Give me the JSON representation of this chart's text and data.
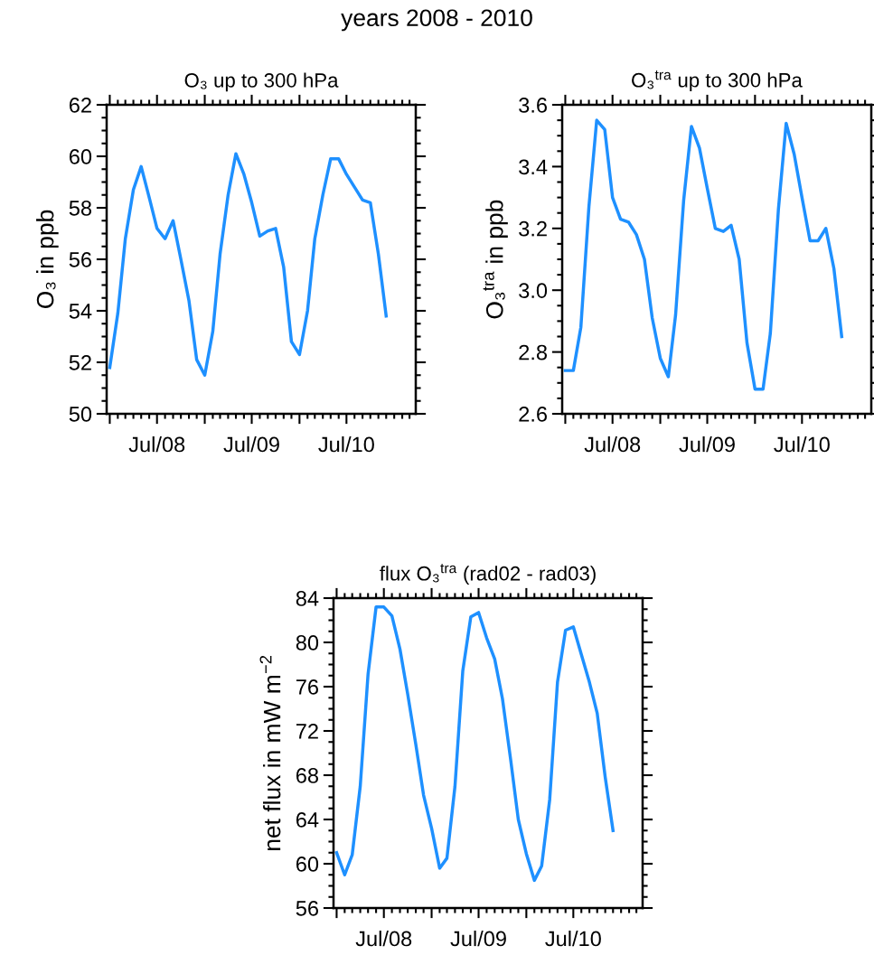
{
  "chart_data": [
    {
      "type": "line",
      "title": "years 2008 - 2010",
      "subtitle": "O₃ up to 300 hPa",
      "ylabel": "O₃ in ppb",
      "color": "#1e90ff",
      "grid": false,
      "x": [
        "2008-01",
        "2008-02",
        "2008-03",
        "2008-04",
        "2008-05",
        "2008-06",
        "2008-07",
        "2008-08",
        "2008-09",
        "2008-10",
        "2008-11",
        "2008-12",
        "2009-01",
        "2009-02",
        "2009-03",
        "2009-04",
        "2009-05",
        "2009-06",
        "2009-07",
        "2009-08",
        "2009-09",
        "2009-10",
        "2009-11",
        "2009-12",
        "2010-01",
        "2010-02",
        "2010-03",
        "2010-04",
        "2010-05",
        "2010-06",
        "2010-07",
        "2010-08",
        "2010-09",
        "2010-10",
        "2010-11",
        "2010-12"
      ],
      "values": [
        51.8,
        53.9,
        56.8,
        58.7,
        59.6,
        58.4,
        57.2,
        56.8,
        57.5,
        56.0,
        54.4,
        52.1,
        51.5,
        53.2,
        56.2,
        58.5,
        60.1,
        59.3,
        58.2,
        56.9,
        57.1,
        57.2,
        55.7,
        52.8,
        52.3,
        54.0,
        56.8,
        58.5,
        59.9,
        59.9,
        59.3,
        58.8,
        58.3,
        58.2,
        56.2,
        53.8
      ],
      "xlim": [
        "2007-12-20",
        "2011-03-25"
      ],
      "xticks": [
        {
          "value": "2008-01",
          "label": null
        },
        {
          "value": "2008-07",
          "label": "Jul/08"
        },
        {
          "value": "2009-01",
          "label": null
        },
        {
          "value": "2009-07",
          "label": "Jul/09"
        },
        {
          "value": "2010-01",
          "label": null
        },
        {
          "value": "2010-07",
          "label": "Jul/10"
        }
      ],
      "ylim": [
        50,
        62
      ],
      "yticks": [
        50,
        52,
        54,
        56,
        58,
        60,
        62
      ]
    },
    {
      "type": "line",
      "title": "O₃$^{tra}$ up to 300 hPa",
      "ylabel": "O₃$^{tra}$ in ppb",
      "color": "#1e90ff",
      "grid": false,
      "x": [
        "2008-01",
        "2008-02",
        "2008-03",
        "2008-04",
        "2008-05",
        "2008-06",
        "2008-07",
        "2008-08",
        "2008-09",
        "2008-10",
        "2008-11",
        "2008-12",
        "2009-01",
        "2009-02",
        "2009-03",
        "2009-04",
        "2009-05",
        "2009-06",
        "2009-07",
        "2009-08",
        "2009-09",
        "2009-10",
        "2009-11",
        "2009-12",
        "2010-01",
        "2010-02",
        "2010-03",
        "2010-04",
        "2010-05",
        "2010-06",
        "2010-07",
        "2010-08",
        "2010-09",
        "2010-10",
        "2010-11",
        "2010-12"
      ],
      "values": [
        2.74,
        2.74,
        2.88,
        3.27,
        3.55,
        3.52,
        3.3,
        3.23,
        3.22,
        3.18,
        3.1,
        2.91,
        2.78,
        2.72,
        2.92,
        3.29,
        3.53,
        3.46,
        3.33,
        3.2,
        3.19,
        3.21,
        3.1,
        2.83,
        2.68,
        2.68,
        2.86,
        3.26,
        3.54,
        3.44,
        3.3,
        3.16,
        3.16,
        3.2,
        3.07,
        2.85
      ],
      "xlim": [
        "2007-12-20",
        "2011-03-25"
      ],
      "xticks": [
        {
          "value": "2008-01",
          "label": null
        },
        {
          "value": "2008-07",
          "label": "Jul/08"
        },
        {
          "value": "2009-01",
          "label": null
        },
        {
          "value": "2009-07",
          "label": "Jul/09"
        },
        {
          "value": "2010-01",
          "label": null
        },
        {
          "value": "2010-07",
          "label": "Jul/10"
        }
      ],
      "ylim": [
        2.6,
        3.6
      ],
      "yticks": [
        {
          "value": 2.6,
          "label": "2.6"
        },
        {
          "value": 2.8,
          "label": "2.8"
        },
        {
          "value": 3.0,
          "label": "3.0"
        },
        {
          "value": 3.2,
          "label": "3.2"
        },
        {
          "value": 3.4,
          "label": "3.4"
        },
        {
          "value": 3.6,
          "label": "3.6"
        }
      ]
    },
    {
      "type": "line",
      "title": "flux O₃$^{tra}$ (rad02 - rad03)",
      "ylabel": "net flux in mW m$^{−2}$",
      "color": "#1e90ff",
      "grid": false,
      "x": [
        "2008-01",
        "2008-02",
        "2008-03",
        "2008-04",
        "2008-05",
        "2008-06",
        "2008-07",
        "2008-08",
        "2008-09",
        "2008-10",
        "2008-11",
        "2008-12",
        "2009-01",
        "2009-02",
        "2009-03",
        "2009-04",
        "2009-05",
        "2009-06",
        "2009-07",
        "2009-08",
        "2009-09",
        "2009-10",
        "2009-11",
        "2009-12",
        "2010-01",
        "2010-02",
        "2010-03",
        "2010-04",
        "2010-05",
        "2010-06",
        "2010-07",
        "2010-08",
        "2010-09",
        "2010-10",
        "2010-11",
        "2010-12"
      ],
      "values": [
        61.0,
        59.0,
        60.8,
        67.0,
        77.1,
        83.2,
        83.2,
        82.4,
        79.4,
        75.3,
        70.8,
        66.2,
        63.2,
        59.6,
        60.5,
        67.0,
        77.4,
        82.3,
        82.7,
        80.4,
        78.5,
        74.9,
        69.5,
        64.0,
        60.9,
        58.5,
        59.8,
        65.8,
        76.4,
        81.1,
        81.4,
        78.9,
        76.4,
        73.6,
        67.8,
        63.0
      ],
      "xlim": [
        "2007-12-20",
        "2011-03-25"
      ],
      "xticks": [
        {
          "value": "2008-01",
          "label": null
        },
        {
          "value": "2008-07",
          "label": "Jul/08"
        },
        {
          "value": "2009-01",
          "label": null
        },
        {
          "value": "2009-07",
          "label": "Jul/09"
        },
        {
          "value": "2010-01",
          "label": null
        },
        {
          "value": "2010-07",
          "label": "Jul/10"
        }
      ],
      "ylim": [
        56,
        84
      ],
      "yticks": [
        56,
        60,
        64,
        68,
        72,
        76,
        80,
        84
      ]
    }
  ]
}
